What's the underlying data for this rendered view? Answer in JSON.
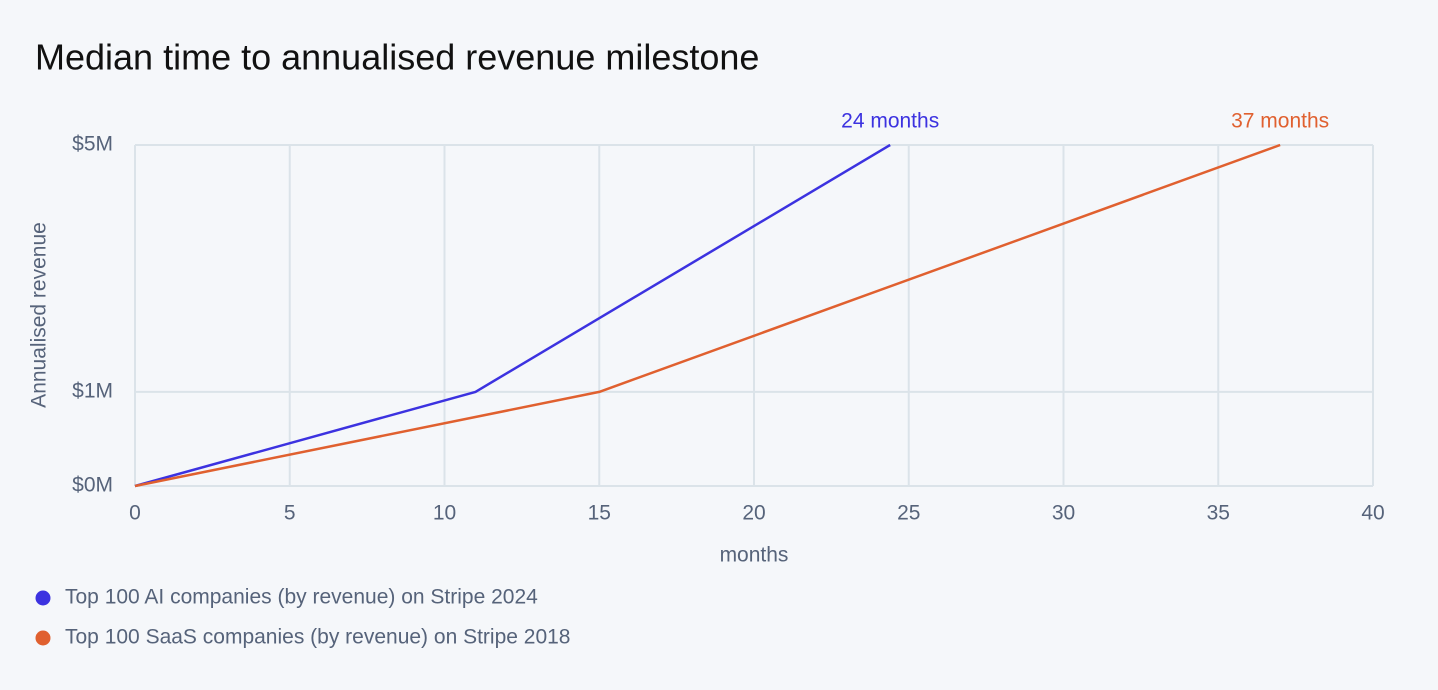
{
  "chart_data": {
    "type": "line",
    "title": "Median time to annualised revenue milestone",
    "x_label": "months",
    "y_label": "Annualised revenue",
    "xlim": [
      0,
      40
    ],
    "xticks": [
      0,
      5,
      10,
      15,
      20,
      25,
      30,
      35,
      40
    ],
    "ylim": [
      0,
      5
    ],
    "yticks": [
      {
        "value": 0,
        "label": "$0M"
      },
      {
        "value": 1,
        "label": "$1M"
      },
      {
        "value": 5,
        "label": "$5M"
      }
    ],
    "yscale": "power",
    "yexponent": 0.8,
    "grid": true,
    "legend": "bottom-left",
    "series": [
      {
        "name": "Top 100 AI companies (by revenue) on Stripe 2024",
        "color": "#3c32e0",
        "x": [
          0,
          11,
          24.4
        ],
        "values": [
          0,
          1,
          5
        ],
        "end_label": "24 months"
      },
      {
        "name": "Top 100 SaaS companies (by revenue) on Stripe 2018",
        "color": "#e0602f",
        "x": [
          0,
          15,
          37
        ],
        "values": [
          0,
          1,
          5
        ],
        "end_label": "37 months"
      }
    ]
  }
}
